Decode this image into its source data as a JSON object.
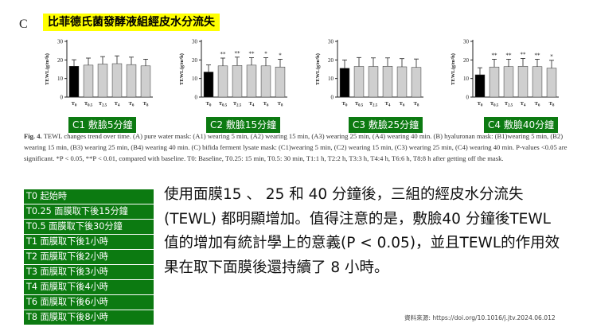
{
  "panel_letter": "C",
  "banner_title": "比菲德氏菌發酵液組經皮水分流失",
  "charts": [
    {
      "tag": "C1 敷臉5分鐘",
      "values": [
        16.6,
        17.2,
        17.8,
        18.0,
        17.5,
        16.8
      ],
      "errors": [
        3.5,
        3.8,
        4.0,
        4.2,
        4.0,
        3.6
      ],
      "stars": [
        "",
        "",
        "",
        "",
        "",
        ""
      ]
    },
    {
      "tag": "C2 敷臉15分鐘",
      "values": [
        13.5,
        16.8,
        17.0,
        17.2,
        16.8,
        16.2
      ],
      "errors": [
        3.8,
        4.2,
        4.5,
        4.0,
        4.4,
        4.2
      ],
      "stars": [
        "",
        "**",
        "**",
        "**",
        "*",
        "*"
      ]
    },
    {
      "tag": "C3 敷臉25分鐘",
      "values": [
        15.5,
        16.5,
        16.5,
        16.6,
        16.3,
        16.0
      ],
      "errors": [
        4.5,
        4.8,
        4.6,
        4.5,
        4.4,
        4.5
      ],
      "stars": [
        "",
        "",
        "",
        "",
        "",
        ""
      ]
    },
    {
      "tag": "C4 敷臉40分鐘",
      "values": [
        12.0,
        16.2,
        16.4,
        16.6,
        16.4,
        15.6
      ],
      "errors": [
        3.8,
        4.2,
        4.0,
        4.2,
        4.0,
        4.2
      ],
      "stars": [
        "",
        "**",
        "**",
        "**",
        "**",
        "*"
      ]
    }
  ],
  "chart_data": {
    "type": "bar",
    "categories": [
      "T0",
      "T0.5",
      "T2.5",
      "T4",
      "T6",
      "T8"
    ],
    "ylabel": "TEWL(g/m²h)",
    "ylim": [
      0,
      30
    ],
    "yticks": [
      0,
      10,
      20,
      30
    ],
    "series_colors": [
      "#000000",
      "#cfcfcf",
      "#cfcfcf",
      "#cfcfcf",
      "#cfcfcf",
      "#cfcfcf"
    ]
  },
  "caption": {
    "lead": "Fig. 4.",
    "body": "TEWL changes trend over time. (A) pure water mask: (A1) wearing 5 min, (A2) wearing 15 min, (A3) wearing 25 min, (A4) wearing 40 min. (B) hyaluronan mask: (B1)wearing 5 min, (B2) wearing 15 min, (B3) wearing 25 min, (B4) wearing 40 min. (C) bifida ferment lysate mask: (C1)wearing 5 min, (C2) wearing 15 min, (C3) wearing 25 min, (C4) wearing 40 min. P-values <0.05 are significant. *P < 0.05, **P < 0.01, compared with baseline. T0: Baseline, T0.25: 15 min, T0.5: 30 min, T1:1 h, T2:2 h, T3:3 h, T4:4 h, T6:6 h, T8:8 h after getting off the mask."
  },
  "legend_items": [
    "T0 起始時",
    "T0.25 面膜取下後15分鐘",
    "T0.5 面膜取下後30分鐘",
    "T1 面膜取下後1小時",
    "T2 面膜取下後2小時",
    "T3 面膜取下後3小時",
    "T4 面膜取下後4小時",
    "T6 面膜取下後6小時",
    "T8 面膜取下後8小時"
  ],
  "summary": "使用面膜15 、 25 和 40 分鐘後，三組的經皮水分流失(TEWL) 都明顯增加。值得注意的是，敷臉40 分鐘後TEWL 值的增加有統計學上的意義(P < 0.05)，並且TEWL的作用效果在取下面膜後還持續了 8 小時。",
  "source": "資料來源: https://doi.org/10.1016/j.jtv.2024.06.012"
}
